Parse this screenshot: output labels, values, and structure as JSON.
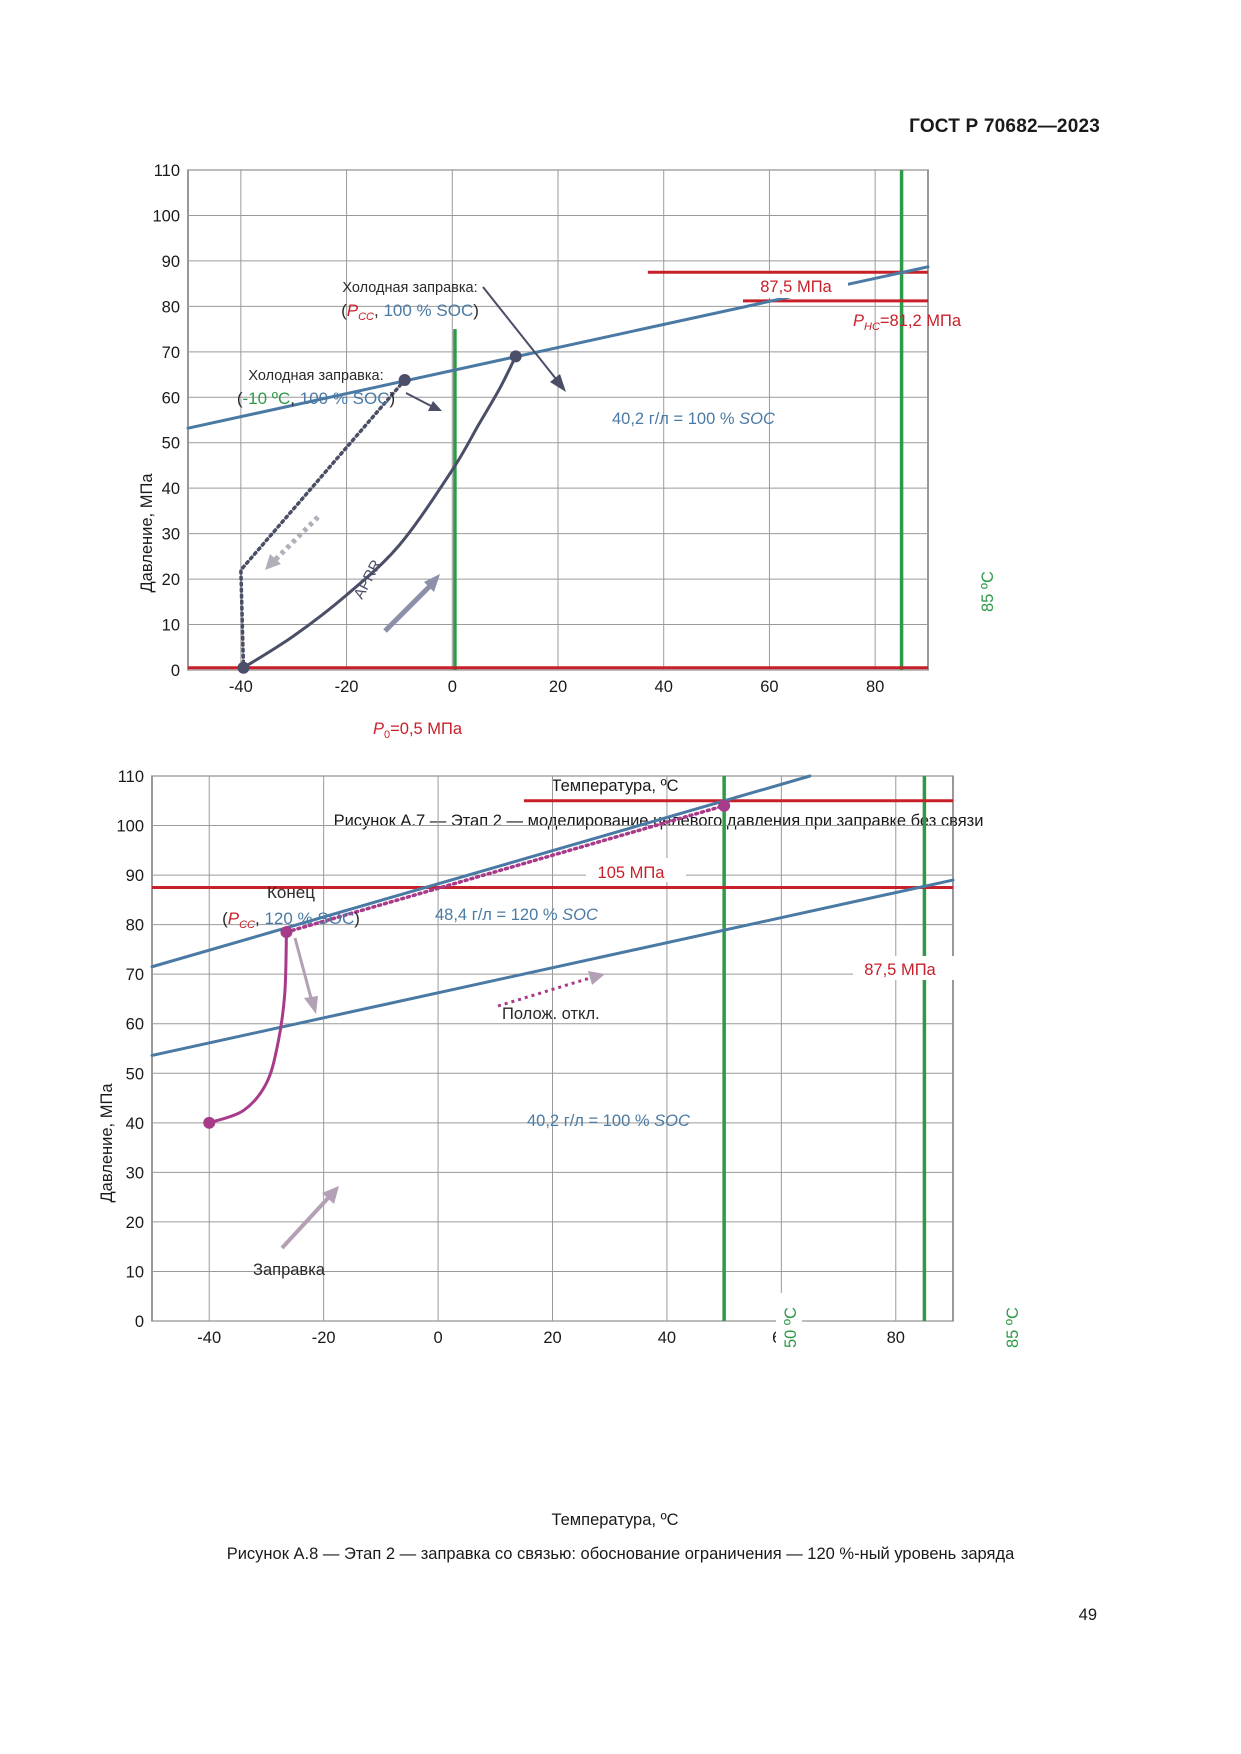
{
  "header": {
    "standard": "ГОСТ Р 70682—2023"
  },
  "colors": {
    "blue": "#4a7aa4",
    "red": "#c8202a",
    "green": "#2e9a46",
    "dark": "#4a4e66",
    "magenta": "#a83a8a",
    "arrow_gray": "#8c90a8",
    "arrow_pink": "#b4a0b4",
    "grid": "#9a9a9a"
  },
  "figures": [
    {
      "caption": "Рисунок А.7 — Этап 2 — моделирование целевого давления при заправке без связи",
      "chart_data": {
        "type": "line",
        "xlabel": "Температура, ºС",
        "ylabel": "Давление, МПа",
        "xlim": [
          -50,
          90
        ],
        "ylim": [
          0,
          110
        ],
        "x_ticks": [
          -40,
          -20,
          0,
          20,
          40,
          60,
          80
        ],
        "y_ticks": [
          0,
          10,
          20,
          30,
          40,
          50,
          60,
          70,
          80,
          90,
          100,
          110
        ],
        "grid": true,
        "series": [
          {
            "name": "40,2 г/л = 100 % SOC",
            "color": "blue",
            "points": [
              [
                -50,
                53.2
              ],
              [
                90,
                88.7
              ]
            ]
          },
          {
            "name": "",
            "color": "dark",
            "style": "solid",
            "points": [
              [
                -39.5,
                0.5
              ],
              [
                -30,
                7.5
              ],
              [
                -20,
                16.5
              ],
              [
                -10,
                27.5
              ],
              [
                0,
                44
              ],
              [
                5,
                54
              ],
              [
                9,
                62
              ],
              [
                12,
                69
              ]
            ]
          },
          {
            "name": "",
            "color": "dark",
            "style": "dotted",
            "points": [
              [
                -9,
                63.8
              ],
              [
                -40,
                22
              ],
              [
                -39.5,
                0.5
              ]
            ]
          }
        ],
        "hlines": [
          {
            "label": "87,5 МПа",
            "y": 87.5,
            "x_from": 37,
            "x_to": 90,
            "color": "red"
          },
          {
            "label_sub": "НС",
            "label_rest": "=81,2 МПа",
            "y": 81.2,
            "x_from": 55,
            "x_to": 90,
            "color": "red"
          },
          {
            "label_sub": "0",
            "label_rest": "=0,5 МПа",
            "y": 0.5,
            "x_from": -50,
            "x_to": 90,
            "color": "red"
          }
        ],
        "vlines": [
          {
            "x": 0.5,
            "y_from": 0,
            "y_to": 75,
            "color": "green",
            "label": ""
          },
          {
            "x": 85,
            "y_from": 0,
            "y_to": 110,
            "color": "green",
            "label": "85 ºС"
          }
        ],
        "points": [
          {
            "x": 12,
            "y": 69,
            "color": "dark"
          },
          {
            "x": -9,
            "y": 63.8,
            "color": "dark"
          },
          {
            "x": -39.5,
            "y": 0.5,
            "color": "dark"
          }
        ],
        "annotations": {
          "cold_cc_title": "Холодная заправка:",
          "cold_cc_sub": "СС",
          "cold_cc_soc": "100 % SOC",
          "cold_10_title": "Холодная заправка:",
          "cold_10_temp": "-10 ºC",
          "cold_10_soc": "100 % SOC",
          "aprr": "APRR",
          "line_label_prefix": "40,2 г/л = 100 %",
          "line_label_soc": "SOC"
        }
      }
    },
    {
      "caption": "Рисунок А.8 — Этап 2 — заправка со связью: обоснование ограничения — 120 %-ный уровень заряда",
      "chart_data": {
        "type": "line",
        "xlabel": "Температура, ºС",
        "ylabel": "Давление, МПа",
        "xlim": [
          -50,
          90
        ],
        "ylim": [
          0,
          110
        ],
        "x_ticks": [
          -40,
          -20,
          0,
          20,
          40,
          60,
          80
        ],
        "y_ticks": [
          0,
          10,
          20,
          30,
          40,
          50,
          60,
          70,
          80,
          90,
          100,
          110
        ],
        "grid": true,
        "series": [
          {
            "name": "48,4 г/л = 120 % SOC",
            "color": "blue",
            "points": [
              [
                -50,
                71.5
              ],
              [
                65,
                110
              ]
            ]
          },
          {
            "name": "40,2 г/л = 100 % SOC",
            "color": "blue",
            "points": [
              [
                -50,
                53.6
              ],
              [
                90,
                89
              ]
            ]
          },
          {
            "name": "",
            "color": "magenta",
            "style": "solid",
            "points": [
              [
                -40,
                40
              ],
              [
                -34,
                42.5
              ],
              [
                -30,
                48
              ],
              [
                -28,
                56
              ],
              [
                -26.8,
                66
              ],
              [
                -26.5,
                78.5
              ]
            ]
          },
          {
            "name": "",
            "color": "magenta",
            "style": "dotted",
            "points": [
              [
                -26.5,
                78.5
              ],
              [
                50,
                104
              ]
            ]
          }
        ],
        "hlines": [
          {
            "label": "105 МПа",
            "y": 105,
            "x_from": 15,
            "x_to": 90,
            "color": "red"
          },
          {
            "label": "87,5 МПа",
            "y": 87.5,
            "x_from": -50,
            "x_to": 90,
            "color": "red"
          }
        ],
        "vlines": [
          {
            "x": 50,
            "y_from": 0,
            "y_to": 110,
            "color": "green",
            "label": "50 ºС"
          },
          {
            "x": 85,
            "y_from": 0,
            "y_to": 110,
            "color": "green",
            "label": "85 ºС"
          }
        ],
        "points": [
          {
            "x": -40,
            "y": 40,
            "color": "magenta"
          },
          {
            "x": -26.5,
            "y": 78.5,
            "color": "magenta"
          },
          {
            "x": 50,
            "y": 104,
            "color": "magenta"
          }
        ],
        "annotations": {
          "end_title": "Конец",
          "end_sub": "СС",
          "end_soc": "120 % SOC",
          "fill_label": "Заправка",
          "pos_dev": "Полож. откл.",
          "line120_prefix": "48,4 г/л = 120 %",
          "line120_soc": "SOC",
          "line100_prefix": "40,2 г/л = 100 %",
          "line100_soc": "SOC"
        }
      }
    }
  ],
  "page_number": "49"
}
